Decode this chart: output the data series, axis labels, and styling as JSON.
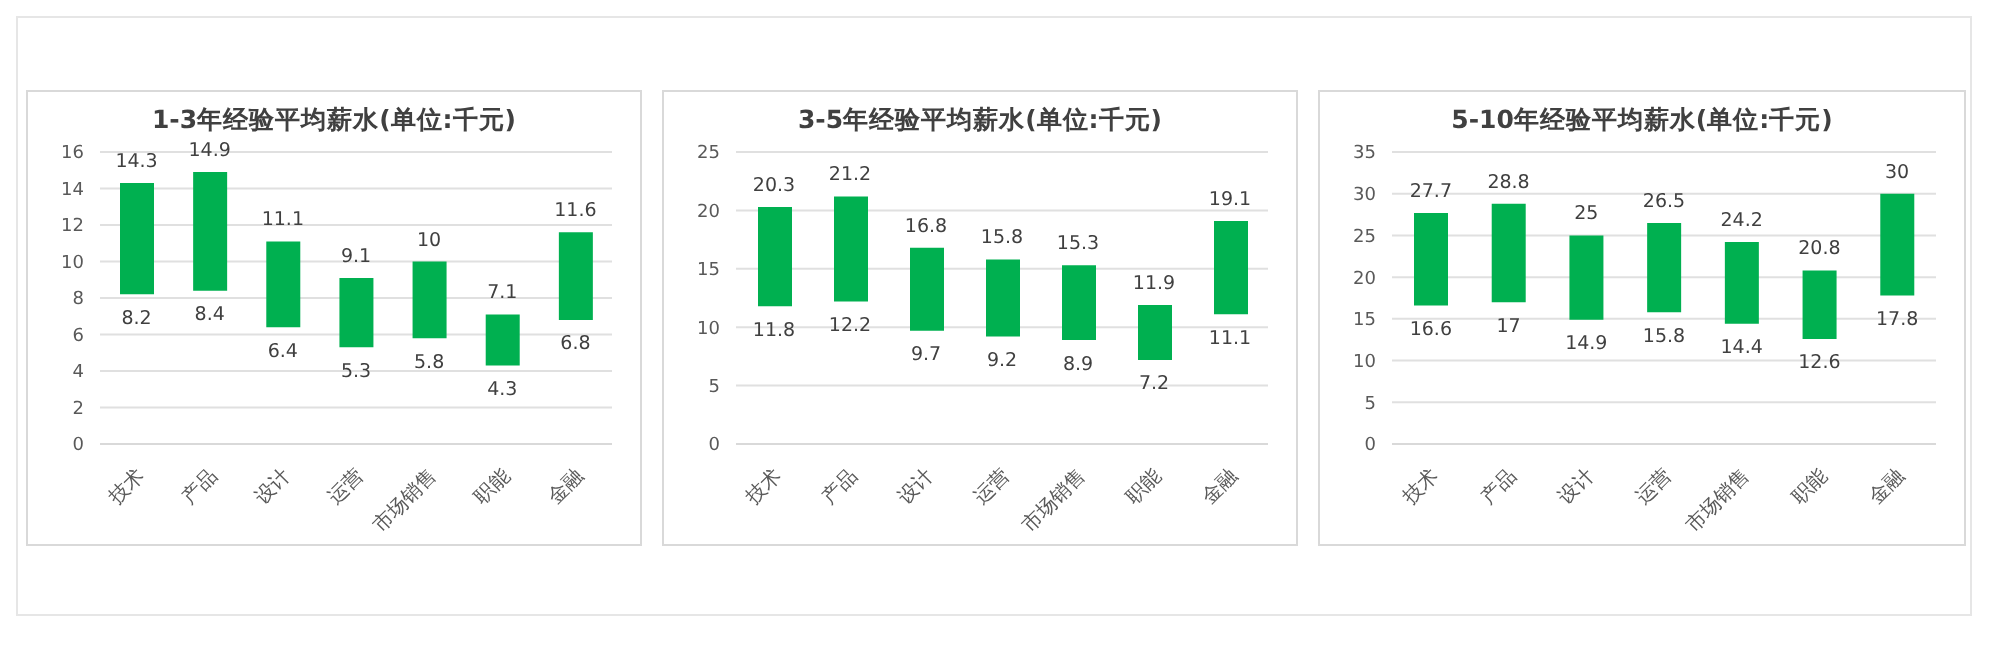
{
  "chart_data": [
    {
      "type": "bar",
      "title": "1-3年经验平均薪水(单位:千元)",
      "categories": [
        "技术",
        "产品",
        "设计",
        "运营",
        "市场销售",
        "职能",
        "金融"
      ],
      "base": [
        8.2,
        8.4,
        6.4,
        5.3,
        5.8,
        4.3,
        6.8
      ],
      "values": [
        6.1,
        6.5,
        4.7,
        3.8,
        4.2,
        2.8,
        4.8
      ],
      "color": "#00b050",
      "ylim": [
        0,
        16
      ],
      "yticks": [
        0,
        2,
        4,
        6,
        8,
        10,
        12,
        14,
        16
      ],
      "grid": "y",
      "annotations": [
        {
          "text": "14.3",
          "x": "技术",
          "y": 14.3
        },
        {
          "text": "8.2",
          "x": "技术",
          "y": 8.2
        },
        {
          "text": "14.9",
          "x": "产品",
          "y": 14.9
        },
        {
          "text": "8.4",
          "x": "产品",
          "y": 8.4
        },
        {
          "text": "11.1",
          "x": "设计",
          "y": 11.1
        },
        {
          "text": "6.4",
          "x": "设计",
          "y": 6.4
        },
        {
          "text": "9.1",
          "x": "运营",
          "y": 9.1
        },
        {
          "text": "5.3",
          "x": "运营",
          "y": 5.3
        },
        {
          "text": "10",
          "x": "市场销售",
          "y": 10
        },
        {
          "text": "5.8",
          "x": "市场销售",
          "y": 5.8
        },
        {
          "text": "7.1",
          "x": "职能",
          "y": 7.1
        },
        {
          "text": "4.3",
          "x": "职能",
          "y": 4.3
        },
        {
          "text": "11.6",
          "x": "金融",
          "y": 11.6
        },
        {
          "text": "6.8",
          "x": "金融",
          "y": 6.8
        }
      ]
    },
    {
      "type": "bar",
      "title": "3-5年经验平均薪水(单位:千元)",
      "categories": [
        "技术",
        "产品",
        "设计",
        "运营",
        "市场销售",
        "职能",
        "金融"
      ],
      "base": [
        11.8,
        12.2,
        9.7,
        9.2,
        8.9,
        7.2,
        11.1
      ],
      "values": [
        8.5,
        9,
        7.1,
        6.6,
        6.4,
        4.7,
        8
      ],
      "color": "#00b050",
      "ylim": [
        0,
        25
      ],
      "yticks": [
        0,
        5,
        10,
        15,
        20,
        25
      ],
      "grid": "y",
      "annotations": [
        {
          "text": "20.3",
          "x": "技术",
          "y": 20.3
        },
        {
          "text": "11.8",
          "x": "技术",
          "y": 11.8
        },
        {
          "text": "21.2",
          "x": "产品",
          "y": 21.2
        },
        {
          "text": "12.2",
          "x": "产品",
          "y": 12.2
        },
        {
          "text": "16.8",
          "x": "设计",
          "y": 16.8
        },
        {
          "text": "9.7",
          "x": "设计",
          "y": 9.7
        },
        {
          "text": "15.8",
          "x": "运营",
          "y": 15.8
        },
        {
          "text": "9.2",
          "x": "运营",
          "y": 9.2
        },
        {
          "text": "15.3",
          "x": "市场销售",
          "y": 15.3
        },
        {
          "text": "8.9",
          "x": "市场销售",
          "y": 8.9
        },
        {
          "text": "11.9",
          "x": "职能",
          "y": 11.9
        },
        {
          "text": "7.2",
          "x": "职能",
          "y": 7.2
        },
        {
          "text": "19.1",
          "x": "金融",
          "y": 19.1
        },
        {
          "text": "11.1",
          "x": "金融",
          "y": 11.1
        }
      ]
    },
    {
      "type": "bar",
      "title": "5-10年经验平均薪水(单位:千元)",
      "categories": [
        "技术",
        "产品",
        "设计",
        "运营",
        "市场销售",
        "职能",
        "金融"
      ],
      "base": [
        16.6,
        17,
        14.9,
        15.8,
        14.4,
        12.6,
        17.8
      ],
      "values": [
        11.1,
        11.8,
        10.1,
        10.7,
        9.8,
        8.2,
        12.2
      ],
      "color": "#00b050",
      "ylim": [
        0,
        35
      ],
      "yticks": [
        0,
        5,
        10,
        15,
        20,
        25,
        30,
        35
      ],
      "grid": "y",
      "annotations": [
        {
          "text": "27.7",
          "x": "技术",
          "y": 27.7
        },
        {
          "text": "16.6",
          "x": "技术",
          "y": 16.6
        },
        {
          "text": "28.8",
          "x": "产品",
          "y": 28.8
        },
        {
          "text": "17",
          "x": "产品",
          "y": 17
        },
        {
          "text": "25",
          "x": "设计",
          "y": 25
        },
        {
          "text": "14.9",
          "x": "设计",
          "y": 14.9
        },
        {
          "text": "26.5",
          "x": "运营",
          "y": 26.5
        },
        {
          "text": "15.8",
          "x": "运营",
          "y": 15.8
        },
        {
          "text": "24.2",
          "x": "市场销售",
          "y": 24.2
        },
        {
          "text": "14.4",
          "x": "市场销售",
          "y": 14.4
        },
        {
          "text": "20.8",
          "x": "职能",
          "y": 20.8
        },
        {
          "text": "12.6",
          "x": "职能",
          "y": 12.6
        },
        {
          "text": "30",
          "x": "金融",
          "y": 30
        },
        {
          "text": "17.8",
          "x": "金融",
          "y": 17.8
        }
      ]
    }
  ]
}
